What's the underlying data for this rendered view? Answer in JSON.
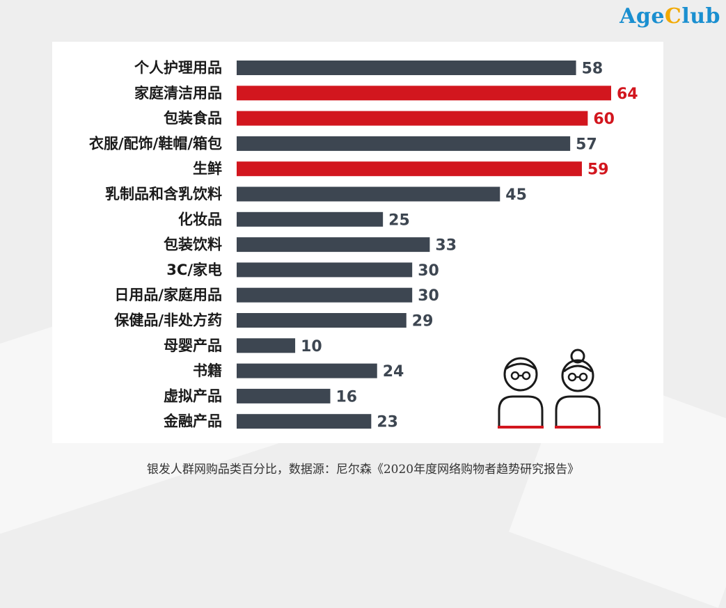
{
  "logo": {
    "part1": "Age",
    "part2": "C",
    "part3": "lub",
    "color_main": "#1a8fd0",
    "color_accent": "#f2a900"
  },
  "caption": "银发人群网购品类百分比，数据源：尼尔森《2020年度网络购物者趋势研究报告》",
  "colors": {
    "bar_default": "#3d4651",
    "bar_highlight": "#d2161e",
    "value_default": "#3d4651",
    "value_highlight": "#d2161e",
    "icon_line": "#1a1a1a",
    "icon_accent": "#d2161e"
  },
  "icons": [
    "grandfather-icon",
    "grandmother-icon"
  ],
  "chart_data": {
    "type": "bar",
    "orientation": "horizontal",
    "xlim": [
      0,
      64
    ],
    "categories": [
      "个人护理用品",
      "家庭清洁用品",
      "包装食品",
      "衣服/配饰/鞋帽/箱包",
      "生鲜",
      "乳制品和含乳饮料",
      "化妆品",
      "包装饮料",
      "3C/家电",
      "日用品/家庭用品",
      "保健品/非处方药",
      "母婴产品",
      "书籍",
      "虚拟产品",
      "金融产品"
    ],
    "values": [
      58,
      64,
      60,
      57,
      59,
      45,
      25,
      33,
      30,
      30,
      29,
      10,
      24,
      16,
      23
    ],
    "highlighted": [
      false,
      true,
      true,
      false,
      true,
      false,
      false,
      false,
      false,
      false,
      false,
      false,
      false,
      false,
      false
    ],
    "data_labels": [
      "58",
      "64",
      "60",
      "57",
      "59",
      "45",
      "25",
      "33",
      "30",
      "30",
      "29",
      "10",
      "24",
      "16",
      "23"
    ],
    "grid": false,
    "legend": "none"
  }
}
